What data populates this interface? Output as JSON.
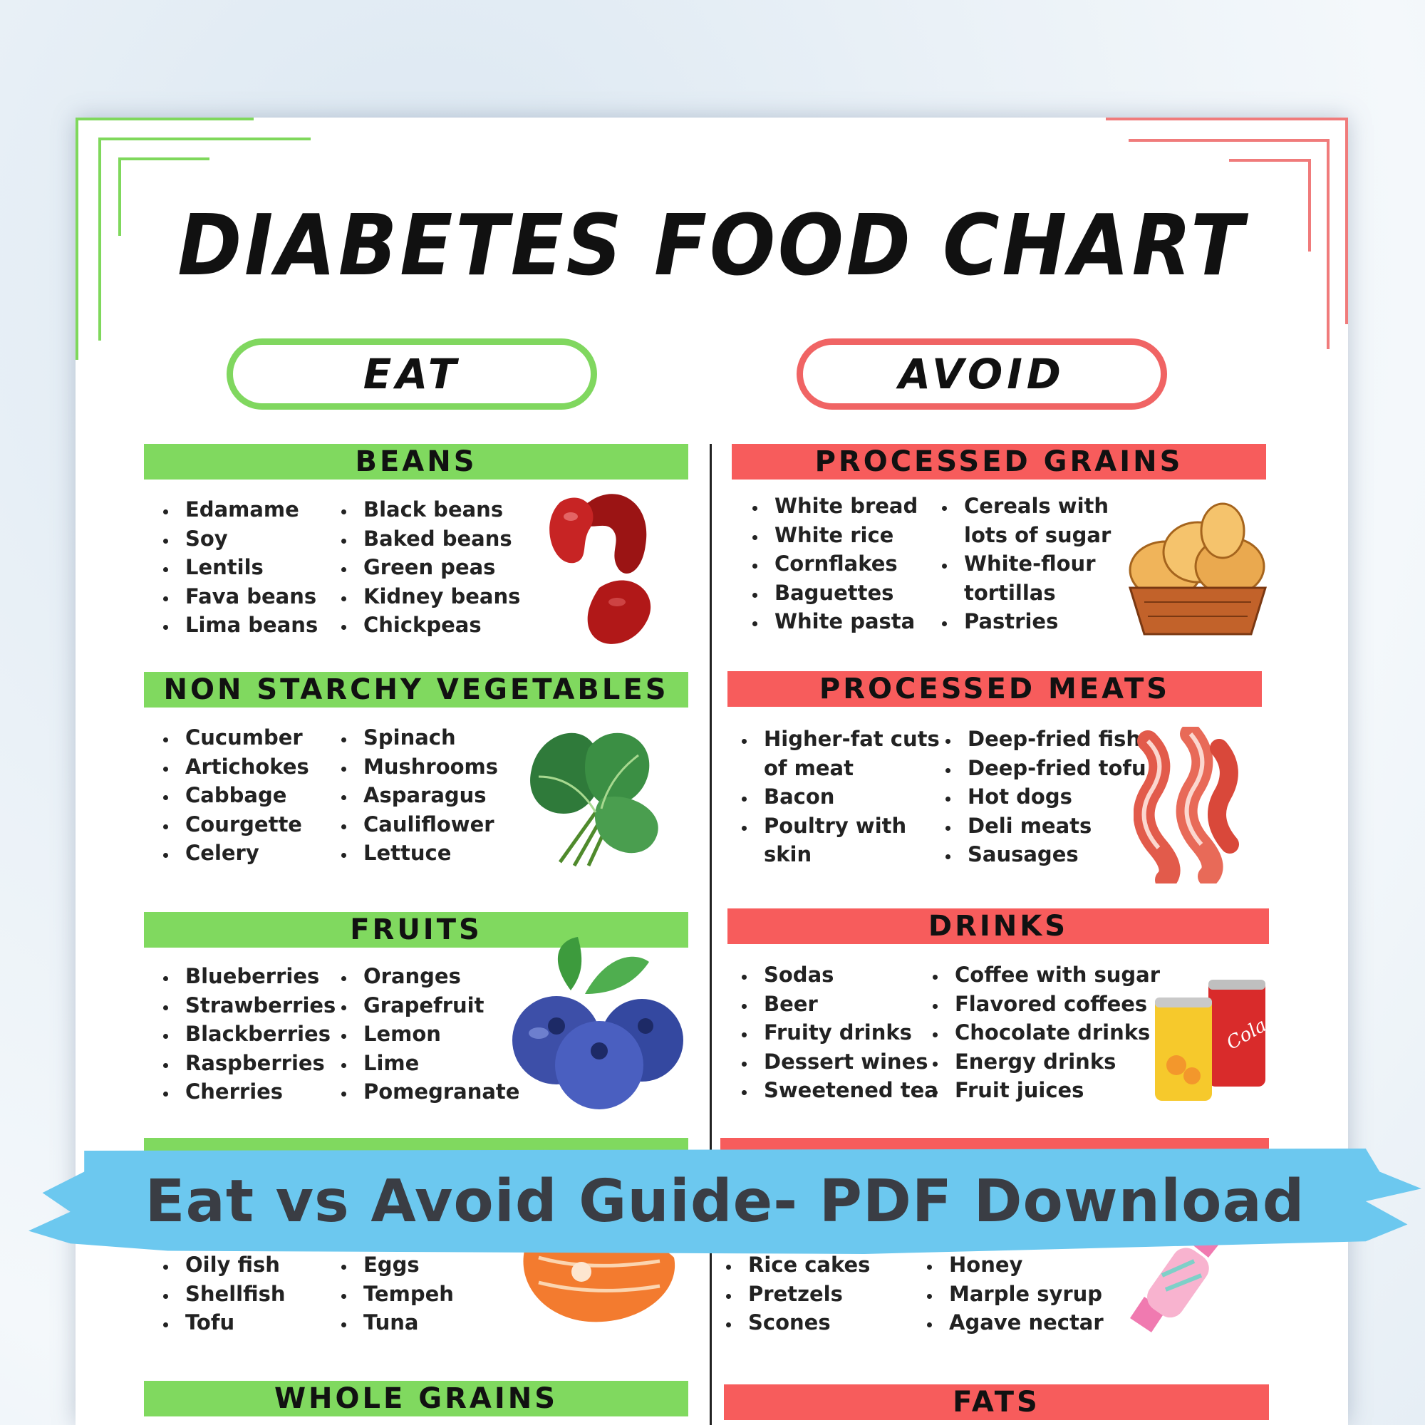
{
  "title": "DIABETES FOOD CHART",
  "eat_label": "EAT",
  "avoid_label": "AVOID",
  "banner": "Eat vs Avoid Guide- PDF Download",
  "colors": {
    "eat_green": "#80d95f",
    "avoid_red": "#f75c5c",
    "banner_blue": "#6cc8ef"
  },
  "eat": {
    "beans": {
      "heading": "BEANS",
      "col1": [
        "Edamame",
        "Soy",
        "Lentils",
        "Fava beans",
        "Lima beans"
      ],
      "col2": [
        "Black beans",
        "Baked beans",
        "Green peas",
        "Kidney beans",
        "Chickpeas"
      ],
      "icon": "kidney-beans-icon"
    },
    "veg": {
      "heading": "NON STARCHY VEGETABLES",
      "col1": [
        "Cucumber",
        "Artichokes",
        "Cabbage",
        "Courgette",
        "Celery"
      ],
      "col2": [
        "Spinach",
        "Mushrooms",
        "Asparagus",
        "Cauliflower",
        "Lettuce"
      ],
      "icon": "spinach-icon"
    },
    "fruits": {
      "heading": "FRUITS",
      "col1": [
        "Blueberries",
        "Strawberries",
        "Blackberries",
        "Raspberries",
        "Cherries"
      ],
      "col2": [
        "Oranges",
        "Grapefruit",
        "Lemon",
        "Lime",
        "Pomegranate"
      ],
      "icon": "blueberries-icon"
    },
    "proteins": {
      "col1": [
        "Oily fish",
        "Shellfish",
        "Tofu"
      ],
      "col2": [
        "Eggs",
        "Tempeh",
        "Tuna"
      ],
      "icon": "salmon-icon"
    },
    "grains": {
      "heading": "WHOLE GRAINS"
    }
  },
  "avoid": {
    "processed_grains": {
      "heading": "PROCESSED GRAINS",
      "col1": [
        "White bread",
        "White rice",
        "Cornflakes",
        "Baguettes",
        "White pasta"
      ],
      "col2": [
        "Cereals with",
        "lots of sugar",
        "White-flour",
        "tortillas",
        "Pastries"
      ],
      "col2_bullets": [
        true,
        false,
        true,
        false,
        true
      ],
      "icon": "bread-basket-icon"
    },
    "processed_meats": {
      "heading": "PROCESSED MEATS",
      "col1": [
        "Higher-fat cuts",
        "of meat",
        "Bacon",
        "Poultry with",
        "skin"
      ],
      "col1_bullets": [
        true,
        false,
        true,
        true,
        false
      ],
      "col2": [
        "Deep-fried fish",
        "Deep-fried tofu",
        "Hot dogs",
        "Deli meats",
        "Sausages"
      ],
      "icon": "bacon-icon"
    },
    "drinks": {
      "heading": "DRINKS",
      "col1": [
        "Sodas",
        "Beer",
        "Fruity drinks",
        "Dessert wines",
        "Sweetened tea"
      ],
      "col2": [
        "Coffee with sugar",
        "Flavored coffees",
        "Chocolate drinks",
        "Energy drinks",
        "Fruit juices"
      ],
      "icon": "soda-cans-icon",
      "can_label": "Cola"
    },
    "desserts": {
      "col1": [
        "Rice cakes",
        "Pretzels",
        "Scones"
      ],
      "col2": [
        "Honey",
        "Marple syrup",
        "Agave nectar"
      ],
      "icon": "candy-icon"
    },
    "fats": {
      "heading": "FATS"
    }
  }
}
